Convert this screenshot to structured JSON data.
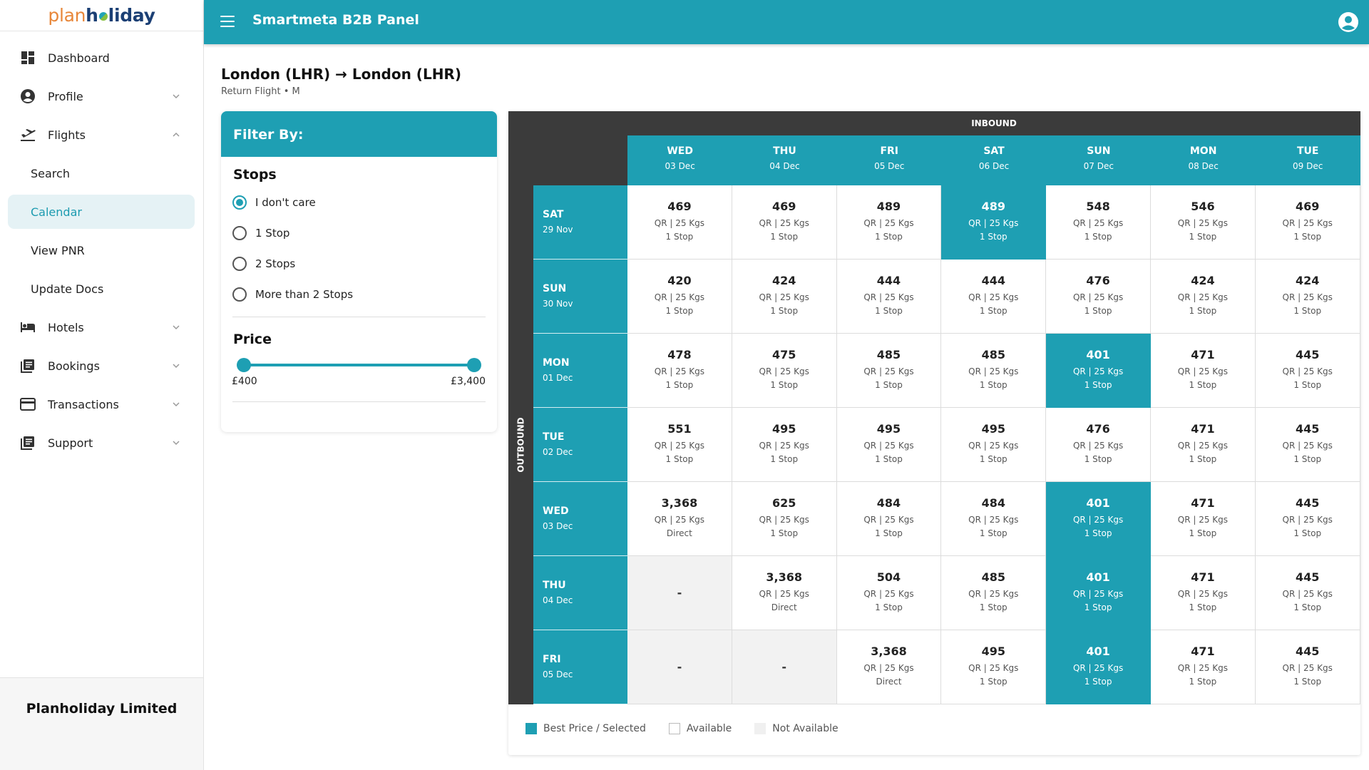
{
  "logo": {
    "part1": "plan",
    "part2": "h",
    "part3": "liday"
  },
  "header": {
    "title": "Smartmeta B2B Panel"
  },
  "sidebar": {
    "items": [
      {
        "label": "Dashboard",
        "icon": "dashboard-icon"
      },
      {
        "label": "Profile",
        "icon": "account-circle-icon"
      },
      {
        "label": "Flights",
        "icon": "flight-takeoff-icon"
      },
      {
        "label": "Search"
      },
      {
        "label": "Calendar"
      },
      {
        "label": "View PNR"
      },
      {
        "label": "Update Docs"
      },
      {
        "label": "Hotels",
        "icon": "bed-icon"
      },
      {
        "label": "Bookings",
        "icon": "library-books-icon"
      },
      {
        "label": "Transactions",
        "icon": "credit-card-icon"
      },
      {
        "label": "Support",
        "icon": "library-books-icon"
      }
    ],
    "footer": "Planholiday Limited"
  },
  "page": {
    "title": "London (LHR) → London (LHR)",
    "subtitle": "Return Flight • M"
  },
  "filter": {
    "heading": "Filter By:",
    "stops_title": "Stops",
    "stops": [
      "I don't care",
      "1 Stop",
      "2 Stops",
      "More than 2 Stops"
    ],
    "selected_stop": 0,
    "price_title": "Price",
    "price_min": "£400",
    "price_max": "£3,400"
  },
  "calendar": {
    "inbound_label": "INBOUND",
    "outbound_label": "OUTBOUND",
    "inbound": [
      {
        "day": "WED",
        "date": "03 Dec"
      },
      {
        "day": "THU",
        "date": "04 Dec"
      },
      {
        "day": "FRI",
        "date": "05 Dec"
      },
      {
        "day": "SAT",
        "date": "06 Dec"
      },
      {
        "day": "SUN",
        "date": "07 Dec"
      },
      {
        "day": "MON",
        "date": "08 Dec"
      },
      {
        "day": "TUE",
        "date": "09 Dec"
      }
    ],
    "outbound": [
      {
        "day": "SAT",
        "date": "29 Nov",
        "cells": [
          {
            "p": "469",
            "m": "QR | 25 Kgs",
            "s": "1 Stop"
          },
          {
            "p": "469",
            "m": "QR | 25 Kgs",
            "s": "1 Stop"
          },
          {
            "p": "489",
            "m": "QR | 25 Kgs",
            "s": "1 Stop"
          },
          {
            "p": "489",
            "m": "QR | 25 Kgs",
            "s": "1 Stop",
            "sel": true
          },
          {
            "p": "548",
            "m": "QR | 25 Kgs",
            "s": "1 Stop"
          },
          {
            "p": "546",
            "m": "QR | 25 Kgs",
            "s": "1 Stop"
          },
          {
            "p": "469",
            "m": "QR | 25 Kgs",
            "s": "1 Stop"
          }
        ]
      },
      {
        "day": "SUN",
        "date": "30 Nov",
        "cells": [
          {
            "p": "420",
            "m": "QR | 25 Kgs",
            "s": "1 Stop"
          },
          {
            "p": "424",
            "m": "QR | 25 Kgs",
            "s": "1 Stop"
          },
          {
            "p": "444",
            "m": "QR | 25 Kgs",
            "s": "1 Stop"
          },
          {
            "p": "444",
            "m": "QR | 25 Kgs",
            "s": "1 Stop"
          },
          {
            "p": "476",
            "m": "QR | 25 Kgs",
            "s": "1 Stop"
          },
          {
            "p": "424",
            "m": "QR | 25 Kgs",
            "s": "1 Stop"
          },
          {
            "p": "424",
            "m": "QR | 25 Kgs",
            "s": "1 Stop"
          }
        ]
      },
      {
        "day": "MON",
        "date": "01 Dec",
        "cells": [
          {
            "p": "478",
            "m": "QR | 25 Kgs",
            "s": "1 Stop"
          },
          {
            "p": "475",
            "m": "QR | 25 Kgs",
            "s": "1 Stop"
          },
          {
            "p": "485",
            "m": "QR | 25 Kgs",
            "s": "1 Stop"
          },
          {
            "p": "485",
            "m": "QR | 25 Kgs",
            "s": "1 Stop"
          },
          {
            "p": "401",
            "m": "QR | 25 Kgs",
            "s": "1 Stop",
            "sel": true
          },
          {
            "p": "471",
            "m": "QR | 25 Kgs",
            "s": "1 Stop"
          },
          {
            "p": "445",
            "m": "QR | 25 Kgs",
            "s": "1 Stop"
          }
        ]
      },
      {
        "day": "TUE",
        "date": "02 Dec",
        "cells": [
          {
            "p": "551",
            "m": "QR | 25 Kgs",
            "s": "1 Stop"
          },
          {
            "p": "495",
            "m": "QR | 25 Kgs",
            "s": "1 Stop"
          },
          {
            "p": "495",
            "m": "QR | 25 Kgs",
            "s": "1 Stop"
          },
          {
            "p": "495",
            "m": "QR | 25 Kgs",
            "s": "1 Stop"
          },
          {
            "p": "476",
            "m": "QR | 25 Kgs",
            "s": "1 Stop"
          },
          {
            "p": "471",
            "m": "QR | 25 Kgs",
            "s": "1 Stop"
          },
          {
            "p": "445",
            "m": "QR | 25 Kgs",
            "s": "1 Stop"
          }
        ]
      },
      {
        "day": "WED",
        "date": "03 Dec",
        "cells": [
          {
            "p": "3,368",
            "m": "QR | 25 Kgs",
            "s": "Direct"
          },
          {
            "p": "625",
            "m": "QR | 25 Kgs",
            "s": "1 Stop"
          },
          {
            "p": "484",
            "m": "QR | 25 Kgs",
            "s": "1 Stop"
          },
          {
            "p": "484",
            "m": "QR | 25 Kgs",
            "s": "1 Stop"
          },
          {
            "p": "401",
            "m": "QR | 25 Kgs",
            "s": "1 Stop",
            "sel": true
          },
          {
            "p": "471",
            "m": "QR | 25 Kgs",
            "s": "1 Stop"
          },
          {
            "p": "445",
            "m": "QR | 25 Kgs",
            "s": "1 Stop"
          }
        ]
      },
      {
        "day": "THU",
        "date": "04 Dec",
        "cells": [
          {
            "na": true,
            "p": "-"
          },
          {
            "p": "3,368",
            "m": "QR | 25 Kgs",
            "s": "Direct"
          },
          {
            "p": "504",
            "m": "QR | 25 Kgs",
            "s": "1 Stop"
          },
          {
            "p": "485",
            "m": "QR | 25 Kgs",
            "s": "1 Stop"
          },
          {
            "p": "401",
            "m": "QR | 25 Kgs",
            "s": "1 Stop",
            "sel": true
          },
          {
            "p": "471",
            "m": "QR | 25 Kgs",
            "s": "1 Stop"
          },
          {
            "p": "445",
            "m": "QR | 25 Kgs",
            "s": "1 Stop"
          }
        ]
      },
      {
        "day": "FRI",
        "date": "05 Dec",
        "cells": [
          {
            "na": true,
            "p": "-"
          },
          {
            "na": true,
            "p": "-"
          },
          {
            "p": "3,368",
            "m": "QR | 25 Kgs",
            "s": "Direct"
          },
          {
            "p": "495",
            "m": "QR | 25 Kgs",
            "s": "1 Stop"
          },
          {
            "p": "401",
            "m": "QR | 25 Kgs",
            "s": "1 Stop",
            "sel": true
          },
          {
            "p": "471",
            "m": "QR | 25 Kgs",
            "s": "1 Stop"
          },
          {
            "p": "445",
            "m": "QR | 25 Kgs",
            "s": "1 Stop"
          }
        ]
      }
    ]
  },
  "legend": {
    "best": "Best Price / Selected",
    "available": "Available",
    "not_available": "Not Available"
  },
  "colors": {
    "accent": "#1e9fb3",
    "dark": "#3b3b3b"
  }
}
